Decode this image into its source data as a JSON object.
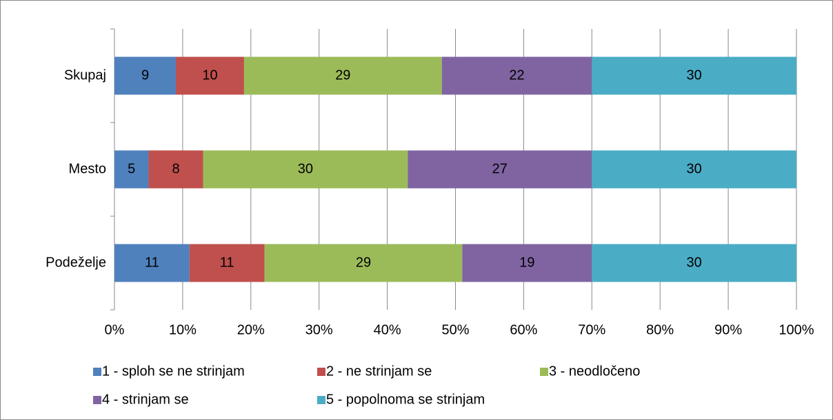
{
  "chart_data": {
    "type": "stacked-bar-horizontal",
    "categories": [
      "Skupaj",
      "Mesto",
      "Podeželje"
    ],
    "series": [
      {
        "name": "1 - sploh se ne strinjam",
        "color": "#4f81bd",
        "values": [
          9,
          5,
          11
        ]
      },
      {
        "name": "2 - ne strinjam se",
        "color": "#c0504d",
        "values": [
          10,
          8,
          11
        ]
      },
      {
        "name": "3 - neodločeno",
        "color": "#9bbb59",
        "values": [
          29,
          30,
          29
        ]
      },
      {
        "name": "4 - strinjam se",
        "color": "#8064a2",
        "values": [
          22,
          27,
          19
        ]
      },
      {
        "name": "5 - popolnoma se strinjam",
        "color": "#4bacc6",
        "values": [
          30,
          30,
          30
        ]
      }
    ],
    "xlim": [
      0,
      100
    ],
    "xticks": [
      {
        "value": 0,
        "label": "0%"
      },
      {
        "value": 10,
        "label": "10%"
      },
      {
        "value": 20,
        "label": "20%"
      },
      {
        "value": 30,
        "label": "30%"
      },
      {
        "value": 40,
        "label": "40%"
      },
      {
        "value": 50,
        "label": "50%"
      },
      {
        "value": 60,
        "label": "60%"
      },
      {
        "value": 70,
        "label": "70%"
      },
      {
        "value": 80,
        "label": "80%"
      },
      {
        "value": 90,
        "label": "90%"
      },
      {
        "value": 100,
        "label": "100%"
      }
    ],
    "grid": true,
    "legend": "bottom"
  }
}
